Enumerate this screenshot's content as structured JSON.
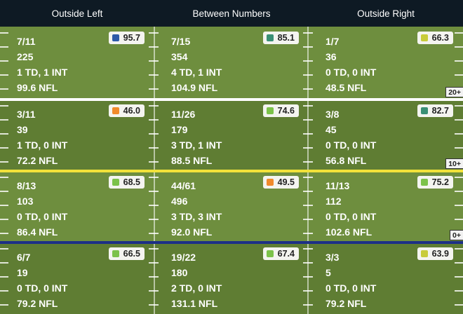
{
  "header": {
    "columns": [
      "Outside Left",
      "Between Numbers",
      "Outside Right"
    ]
  },
  "colors": {
    "field_light": "#6e8e3e",
    "field_dark": "#5f7d33",
    "line_20": "#ffffff",
    "line_10": "#f2e23a",
    "line_0": "#1c2f86",
    "grade_elite": "#2e5aa8",
    "grade_high": "#3a8f75",
    "grade_good": "#7cc24a",
    "grade_avg": "#c8cc3a",
    "grade_low": "#f08a2c"
  },
  "zones": [
    {
      "depth_label": "20+",
      "cells": [
        {
          "comp_att": "7/11",
          "yards": "225",
          "td_int": "1 TD, 1 INT",
          "rating": "99.6 NFL",
          "grade": "95.7",
          "grade_color": "#2e5aa8"
        },
        {
          "comp_att": "7/15",
          "yards": "354",
          "td_int": "4 TD, 1 INT",
          "rating": "104.9 NFL",
          "grade": "85.1",
          "grade_color": "#3a8f75"
        },
        {
          "comp_att": "1/7",
          "yards": "36",
          "td_int": "0 TD, 0 INT",
          "rating": "48.5 NFL",
          "grade": "66.3",
          "grade_color": "#c8cc3a"
        }
      ]
    },
    {
      "depth_label": "10+",
      "cells": [
        {
          "comp_att": "3/11",
          "yards": "39",
          "td_int": "1 TD, 0 INT",
          "rating": "72.2 NFL",
          "grade": "46.0",
          "grade_color": "#f08a2c"
        },
        {
          "comp_att": "11/26",
          "yards": "179",
          "td_int": "3 TD, 1 INT",
          "rating": "88.5 NFL",
          "grade": "74.6",
          "grade_color": "#7cc24a"
        },
        {
          "comp_att": "3/8",
          "yards": "45",
          "td_int": "0 TD, 0 INT",
          "rating": "56.8 NFL",
          "grade": "82.7",
          "grade_color": "#3a8f75"
        }
      ]
    },
    {
      "depth_label": "0+",
      "cells": [
        {
          "comp_att": "8/13",
          "yards": "103",
          "td_int": "0 TD, 0 INT",
          "rating": "86.4 NFL",
          "grade": "68.5",
          "grade_color": "#7cc24a"
        },
        {
          "comp_att": "44/61",
          "yards": "496",
          "td_int": "3 TD, 3 INT",
          "rating": "92.0 NFL",
          "grade": "49.5",
          "grade_color": "#f08a2c"
        },
        {
          "comp_att": "11/13",
          "yards": "112",
          "td_int": "0 TD, 0 INT",
          "rating": "102.6 NFL",
          "grade": "75.2",
          "grade_color": "#7cc24a"
        }
      ]
    },
    {
      "depth_label": "",
      "cells": [
        {
          "comp_att": "6/7",
          "yards": "19",
          "td_int": "0 TD, 0 INT",
          "rating": "79.2 NFL",
          "grade": "66.5",
          "grade_color": "#7cc24a"
        },
        {
          "comp_att": "19/22",
          "yards": "180",
          "td_int": "2 TD, 0 INT",
          "rating": "131.1 NFL",
          "grade": "67.4",
          "grade_color": "#7cc24a"
        },
        {
          "comp_att": "3/3",
          "yards": "5",
          "td_int": "0 TD, 0 INT",
          "rating": "79.2 NFL",
          "grade": "63.9",
          "grade_color": "#c8cc3a"
        }
      ]
    }
  ]
}
